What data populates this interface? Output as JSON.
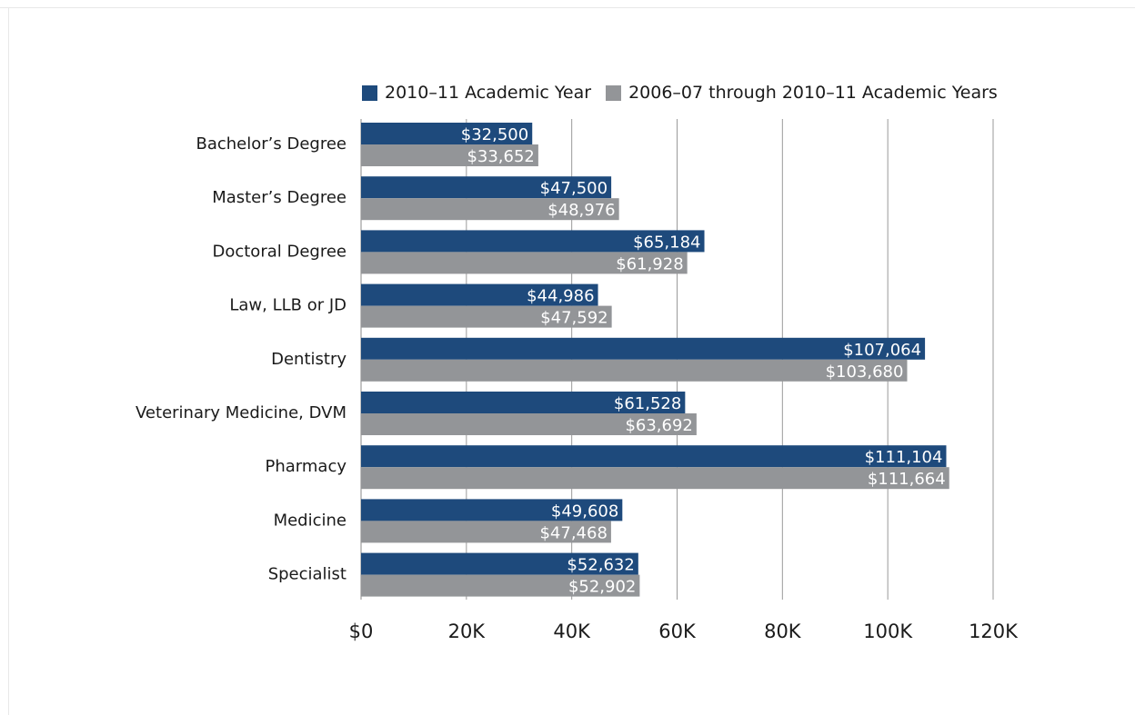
{
  "chart_data": {
    "type": "bar",
    "orientation": "horizontal",
    "categories": [
      "Bachelor’s Degree",
      "Master’s Degree",
      "Doctoral Degree",
      "Law, LLB or JD",
      "Dentistry",
      "Veterinary Medicine, DVM",
      "Pharmacy",
      "Medicine",
      "Specialist"
    ],
    "series": [
      {
        "name": "2010–11 Academic Year",
        "color": "#1e4a7c",
        "values": [
          32500,
          47500,
          65184,
          44986,
          107064,
          61528,
          111104,
          49608,
          52632
        ],
        "labels": [
          "$32,500",
          "$47,500",
          "$65,184",
          "$44,986",
          "$107,064",
          "$61,528",
          "$111,104",
          "$49,608",
          "$52,632"
        ]
      },
      {
        "name": "2006–07 through 2010–11 Academic Years",
        "color": "#939598",
        "values": [
          33652,
          48976,
          61928,
          47592,
          103680,
          63692,
          111664,
          47468,
          52902
        ],
        "labels": [
          "$33,652",
          "$48,976",
          "$61,928",
          "$47,592",
          "$103,680",
          "$63,692",
          "$111,664",
          "$47,468",
          "$52,902"
        ]
      }
    ],
    "xlim": [
      0,
      120000
    ],
    "xticks": [
      0,
      20000,
      40000,
      60000,
      80000,
      100000,
      120000
    ],
    "xtick_labels": [
      "$0",
      "20K",
      "40K",
      "60K",
      "80K",
      "100K",
      "120K"
    ],
    "grid": "vertical",
    "legend_position": "top"
  }
}
